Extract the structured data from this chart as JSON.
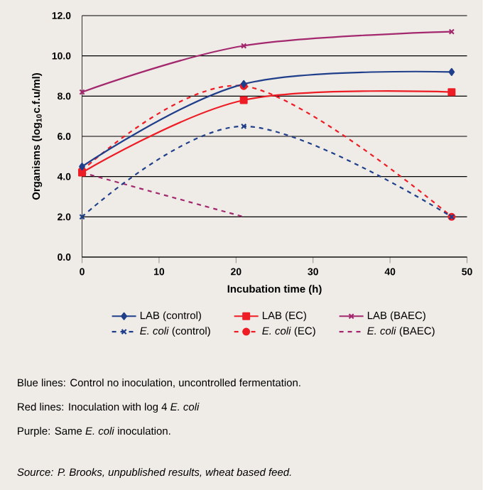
{
  "chart_data": {
    "type": "line",
    "xlabel": "Incubation time (h)",
    "ylabel": "Organisms (log$_{10}$c.f.u/ml)",
    "x": [
      0,
      21,
      48
    ],
    "series": [
      {
        "name": "LAB (control)",
        "color": "#1f3f8a",
        "values": [
          4.5,
          8.6,
          9.2
        ],
        "marker": "diamond",
        "line_style": "solid"
      },
      {
        "name": "LAB (EC)",
        "color": "#ee1c24",
        "values": [
          4.2,
          7.8,
          8.2
        ],
        "marker": "square",
        "line_style": "solid"
      },
      {
        "name": "LAB (BAEC)",
        "color": "#a3286e",
        "values": [
          8.2,
          10.5,
          11.2
        ],
        "marker": "cross",
        "line_style": "solid"
      },
      {
        "name": "*E. coli* (control)",
        "color": "#1f3f8a",
        "values": [
          2.0,
          6.5,
          2.0
        ],
        "marker": "cross",
        "line_style": "dashed"
      },
      {
        "name": "*E. coli* (EC)",
        "color": "#ee1c24",
        "values": [
          4.3,
          8.5,
          2.0
        ],
        "marker": "circle",
        "line_style": "dashed"
      },
      {
        "name": "*E. coli* (BAEC)",
        "color": "#a3286e",
        "values": [
          4.2,
          2.0,
          null
        ],
        "marker": "none",
        "line_style": "dashed"
      }
    ],
    "xlim": [
      0,
      50
    ],
    "xticks": [
      0,
      10,
      20,
      30,
      40,
      50
    ],
    "ylim": [
      0,
      12
    ],
    "yticks": [
      {
        "value": 0,
        "label": "0.0"
      },
      {
        "value": 2,
        "label": "2.0"
      },
      {
        "value": 4,
        "label": "4.0"
      },
      {
        "value": 6,
        "label": "6.0"
      },
      {
        "value": 8,
        "label": "8.0"
      },
      {
        "value": 10,
        "label": "10.0"
      },
      {
        "value": 12,
        "label": "12.0"
      }
    ],
    "grid": "y",
    "legend": "bottom",
    "annotations": [
      "Blue lines: Control no inoculation, uncontrolled fermentation.",
      "Red lines: Inoculation with log 4 *E. coli*",
      "Purple: Same *E. coli* inoculation.",
      "*Source: P. Brooks, unpublished results, wheat based feed.*"
    ]
  }
}
